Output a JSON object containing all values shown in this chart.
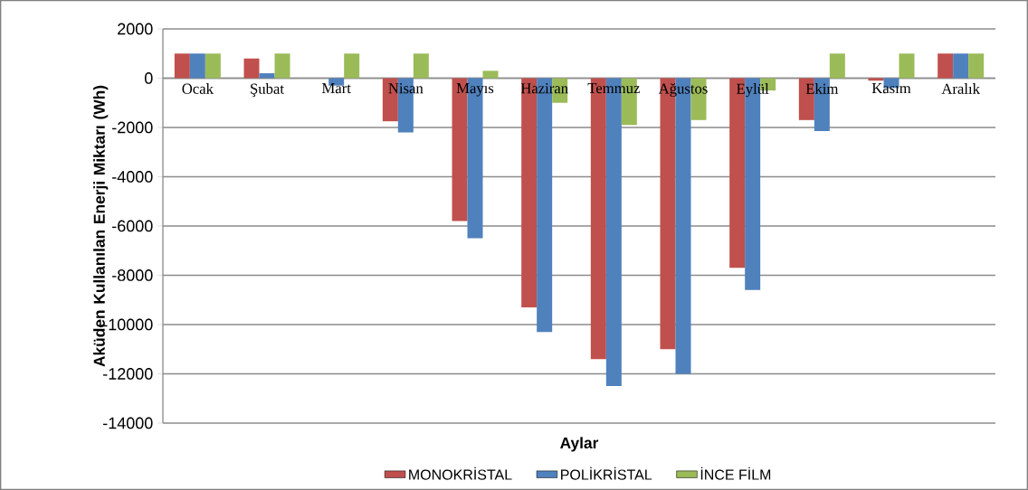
{
  "chart_data": {
    "type": "bar",
    "xlabel": "Aylar",
    "ylabel": "Aküden Kullanılan Enerji Miktarı (Wh)",
    "categories": [
      "Ocak",
      "Şubat",
      "Mart",
      "Nisan",
      "Mayıs",
      "Haziran",
      "Temmuz",
      "Ağustos",
      "Eylül",
      "Ekim",
      "Kasım",
      "Aralık"
    ],
    "series": [
      {
        "name": "MONOKRİSTAL",
        "color": "#c0504d",
        "values": [
          1000,
          800,
          0,
          -1750,
          -5800,
          -9300,
          -11400,
          -11000,
          -7700,
          -1700,
          -100,
          1000
        ]
      },
      {
        "name": "POLİKRİSTAL",
        "color": "#4f81bd",
        "values": [
          1000,
          200,
          -300,
          -2200,
          -6500,
          -10300,
          -12500,
          -12000,
          -8600,
          -2150,
          -400,
          1000
        ]
      },
      {
        "name": "İNCE FİLM",
        "color": "#9bbb59",
        "values": [
          1000,
          1000,
          1000,
          1000,
          300,
          -1000,
          -1900,
          -1700,
          -500,
          1000,
          1000,
          1000
        ]
      }
    ],
    "ylim": [
      -14000,
      2000
    ],
    "yticks": [
      -14000,
      -12000,
      -10000,
      -8000,
      -6000,
      -4000,
      -2000,
      0,
      2000
    ],
    "grid": "y",
    "legend": "bottom"
  }
}
